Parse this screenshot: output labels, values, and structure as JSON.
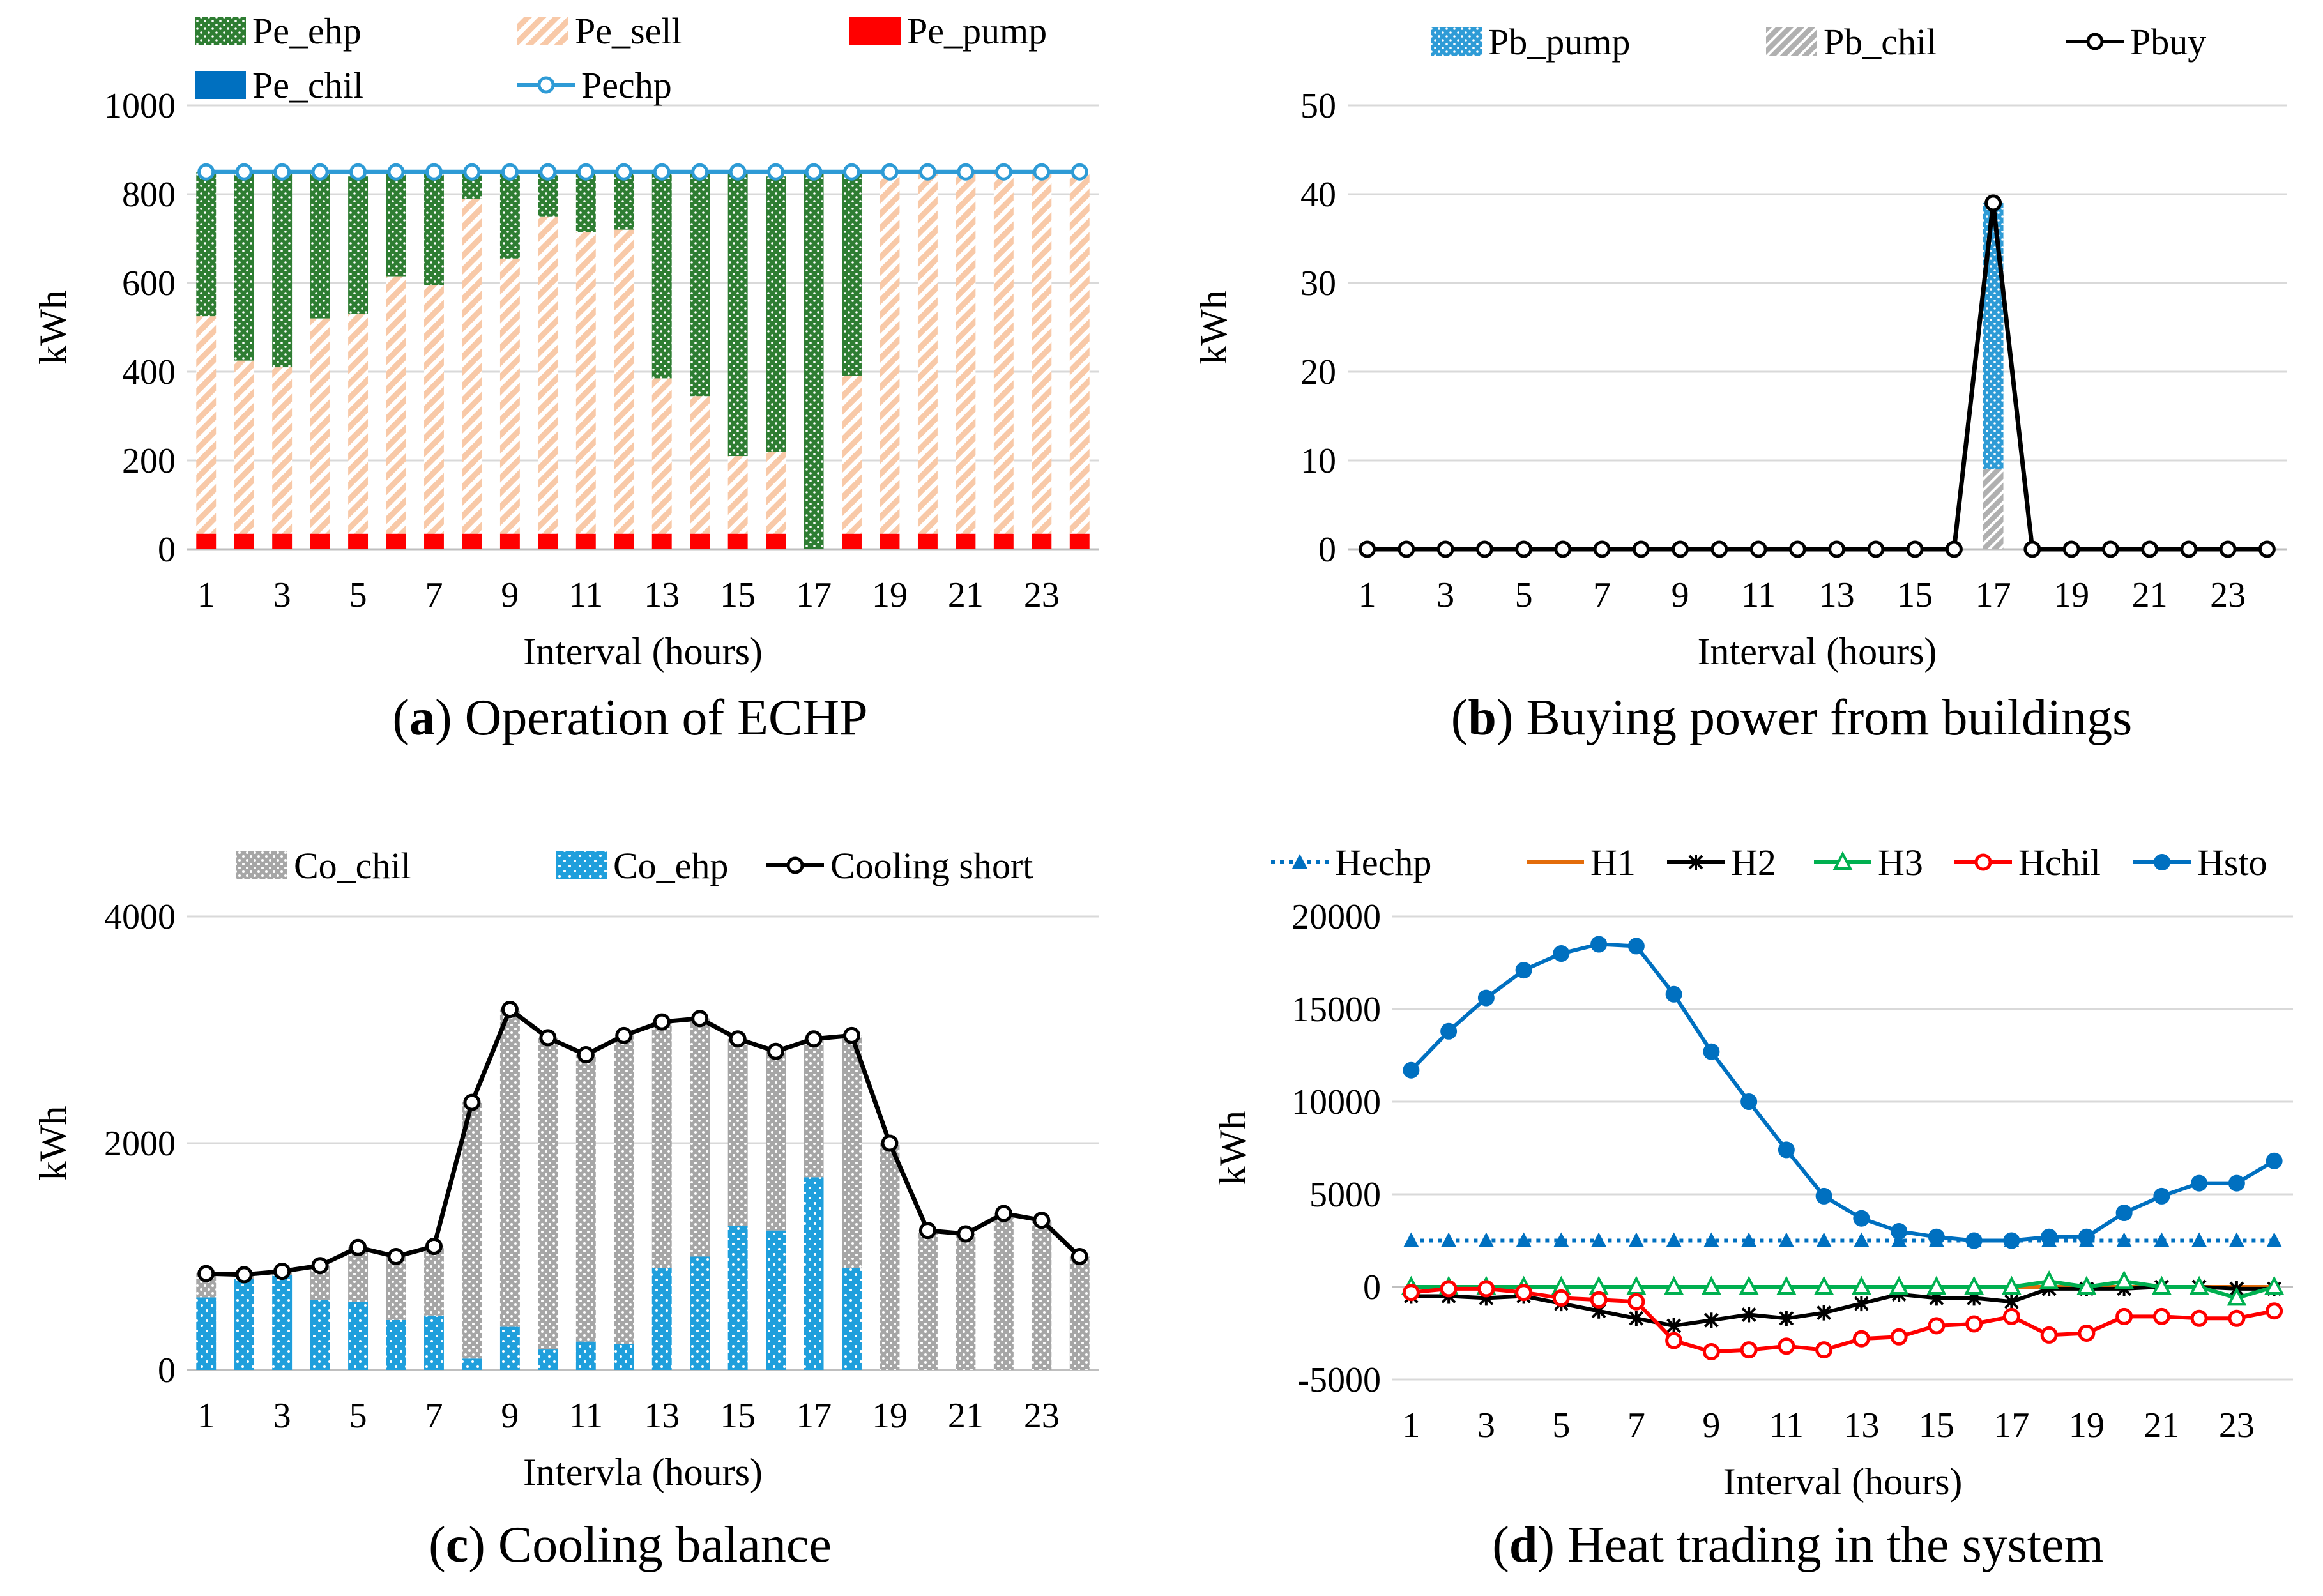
{
  "chart_data": [
    {
      "id": "a",
      "type": "bar",
      "stacked": true,
      "caption_label": "a",
      "caption_text": ") Operation of ECHP",
      "xlabel": "Interval (hours)",
      "ylabel": "kWh",
      "ylim": [
        0,
        1000
      ],
      "yticks": [
        "0",
        "200",
        "400",
        "600",
        "800",
        "1000"
      ],
      "categories": [
        1,
        2,
        3,
        4,
        5,
        6,
        7,
        8,
        9,
        10,
        11,
        12,
        13,
        14,
        15,
        16,
        17,
        18,
        19,
        20,
        21,
        22,
        23,
        24
      ],
      "xtick_labels": [
        "1",
        "3",
        "5",
        "7",
        "9",
        "11",
        "13",
        "15",
        "17",
        "19",
        "21",
        "23"
      ],
      "series": [
        {
          "name": "Pe_ehp",
          "color": "#2e7d32",
          "values": [
            325,
            420,
            435,
            325,
            310,
            230,
            250,
            55,
            190,
            95,
            130,
            125,
            465,
            500,
            635,
            620,
            850,
            455,
            0,
            0,
            0,
            0,
            0,
            0
          ]
        },
        {
          "name": "Pe_sell",
          "color": "#f4b183",
          "values": [
            490,
            390,
            375,
            485,
            495,
            580,
            560,
            755,
            620,
            715,
            680,
            685,
            350,
            310,
            175,
            185,
            0,
            355,
            810,
            810,
            810,
            810,
            810,
            810
          ]
        },
        {
          "name": "Pe_pump",
          "color": "#ff0000",
          "values": [
            35,
            35,
            35,
            35,
            35,
            35,
            35,
            35,
            35,
            35,
            35,
            35,
            35,
            35,
            35,
            35,
            0,
            35,
            35,
            35,
            35,
            35,
            35,
            35
          ]
        },
        {
          "name": "Pe_chil",
          "color": "#0070c0",
          "values": [
            0,
            0,
            0,
            0,
            0,
            0,
            0,
            0,
            0,
            0,
            0,
            0,
            0,
            0,
            0,
            0,
            0,
            0,
            0,
            0,
            0,
            0,
            0,
            0
          ]
        },
        {
          "name": "Pechp",
          "type": "line",
          "color": "#2e9bd6",
          "values": [
            850,
            850,
            850,
            850,
            850,
            850,
            850,
            850,
            850,
            850,
            850,
            850,
            850,
            850,
            850,
            850,
            850,
            850,
            850,
            850,
            850,
            850,
            850,
            850
          ]
        }
      ]
    },
    {
      "id": "b",
      "type": "bar",
      "stacked": true,
      "caption_label": "b",
      "caption_text": ") Buying power from buildings",
      "xlabel": "Interval (hours)",
      "ylabel": "kWh",
      "ylim": [
        0,
        50
      ],
      "yticks": [
        "0",
        "10",
        "20",
        "30",
        "40",
        "50"
      ],
      "categories": [
        1,
        2,
        3,
        4,
        5,
        6,
        7,
        8,
        9,
        10,
        11,
        12,
        13,
        14,
        15,
        16,
        17,
        18,
        19,
        20,
        21,
        22,
        23,
        24
      ],
      "xtick_labels": [
        "1",
        "3",
        "5",
        "7",
        "9",
        "11",
        "13",
        "15",
        "17",
        "19",
        "21",
        "23"
      ],
      "series": [
        {
          "name": "Pb_pump",
          "color": "#2e9bd6",
          "values": [
            0,
            0,
            0,
            0,
            0,
            0,
            0,
            0,
            0,
            0,
            0,
            0,
            0,
            0,
            0,
            0,
            30,
            0,
            0,
            0,
            0,
            0,
            0,
            0
          ]
        },
        {
          "name": "Pb_chil",
          "color": "#a6a6a6",
          "values": [
            0,
            0,
            0,
            0,
            0,
            0,
            0,
            0,
            0,
            0,
            0,
            0,
            0,
            0,
            0,
            0,
            9,
            0,
            0,
            0,
            0,
            0,
            0,
            0
          ]
        },
        {
          "name": "Pbuy",
          "type": "line",
          "color": "#000000",
          "values": [
            0,
            0,
            0,
            0,
            0,
            0,
            0,
            0,
            0,
            0,
            0,
            0,
            0,
            0,
            0,
            0,
            39,
            0,
            0,
            0,
            0,
            0,
            0,
            0
          ]
        }
      ]
    },
    {
      "id": "c",
      "type": "bar",
      "stacked": true,
      "caption_label": "c",
      "caption_text": ") Cooling balance",
      "xlabel": "Intervla (hours)",
      "ylabel": "kWh",
      "ylim": [
        0,
        4000
      ],
      "yticks": [
        "0",
        "2000",
        "4000"
      ],
      "categories": [
        1,
        2,
        3,
        4,
        5,
        6,
        7,
        8,
        9,
        10,
        11,
        12,
        13,
        14,
        15,
        16,
        17,
        18,
        19,
        20,
        21,
        22,
        23,
        24
      ],
      "xtick_labels": [
        "1",
        "3",
        "5",
        "7",
        "9",
        "11",
        "13",
        "15",
        "17",
        "19",
        "21",
        "23"
      ],
      "series": [
        {
          "name": "Co_chil",
          "color": "#a6a6a6",
          "values": [
            210,
            40,
            30,
            300,
            480,
            560,
            610,
            2260,
            2800,
            2750,
            2530,
            2720,
            2170,
            2100,
            1650,
            1580,
            1220,
            2050,
            2000,
            1230,
            1200,
            1380,
            1320,
            1000
          ]
        },
        {
          "name": "Co_ehp",
          "color": "#1f9fdc",
          "values": [
            640,
            800,
            840,
            620,
            600,
            440,
            480,
            100,
            380,
            180,
            250,
            230,
            900,
            1000,
            1270,
            1230,
            1700,
            900,
            0,
            0,
            0,
            0,
            0,
            0
          ]
        },
        {
          "name": "Cooling short",
          "type": "line",
          "color": "#000000",
          "values": [
            850,
            840,
            870,
            920,
            1080,
            1000,
            1090,
            2360,
            3180,
            2930,
            2780,
            2950,
            3070,
            3100,
            2920,
            2810,
            2920,
            2950,
            2000,
            1230,
            1200,
            1380,
            1320,
            1000
          ]
        }
      ]
    },
    {
      "id": "d",
      "type": "line",
      "caption_label": "d",
      "caption_text": ") Heat trading in the system",
      "xlabel": "Interval (hours)",
      "ylabel": "kWh",
      "ylim": [
        -5000,
        20000
      ],
      "yticks": [
        "-5000",
        "0",
        "5000",
        "10000",
        "15000",
        "20000"
      ],
      "x": [
        1,
        2,
        3,
        4,
        5,
        6,
        7,
        8,
        9,
        10,
        11,
        12,
        13,
        14,
        15,
        16,
        17,
        18,
        19,
        20,
        21,
        22,
        23,
        24
      ],
      "xtick_labels": [
        "1",
        "3",
        "5",
        "7",
        "9",
        "11",
        "13",
        "15",
        "17",
        "19",
        "21",
        "23"
      ],
      "series": [
        {
          "name": "Hechp",
          "color": "#0070c0",
          "marker": "triangle-filled",
          "dash": "dotted",
          "values": [
            2500,
            2500,
            2500,
            2500,
            2500,
            2500,
            2500,
            2500,
            2500,
            2500,
            2500,
            2500,
            2500,
            2500,
            2500,
            2500,
            2500,
            2500,
            2500,
            2500,
            2500,
            2500,
            2500,
            2500
          ]
        },
        {
          "name": "H1",
          "color": "#e36c0a",
          "marker": "none",
          "values": [
            0,
            0,
            0,
            0,
            0,
            0,
            0,
            0,
            0,
            0,
            0,
            0,
            0,
            0,
            0,
            0,
            0,
            0,
            0,
            0,
            0,
            0,
            0,
            0
          ]
        },
        {
          "name": "H2",
          "color": "#000000",
          "marker": "x",
          "values": [
            -500,
            -500,
            -600,
            -500,
            -900,
            -1300,
            -1700,
            -2100,
            -1800,
            -1500,
            -1700,
            -1400,
            -900,
            -400,
            -600,
            -600,
            -800,
            -100,
            -100,
            -100,
            0,
            0,
            -100,
            -100
          ]
        },
        {
          "name": "H3",
          "color": "#00b050",
          "marker": "triangle-open",
          "values": [
            0,
            0,
            0,
            0,
            0,
            0,
            0,
            0,
            0,
            0,
            0,
            0,
            0,
            0,
            0,
            0,
            0,
            300,
            0,
            300,
            0,
            0,
            -600,
            0
          ]
        },
        {
          "name": "Hchil",
          "color": "#ff0000",
          "marker": "circle-open",
          "values": [
            -300,
            -100,
            -100,
            -300,
            -600,
            -700,
            -800,
            -2900,
            -3500,
            -3400,
            -3200,
            -3400,
            -2800,
            -2700,
            -2100,
            -2000,
            -1600,
            -2600,
            -2500,
            -1600,
            -1600,
            -1700,
            -1700,
            -1300
          ]
        },
        {
          "name": "Hsto",
          "color": "#0070c0",
          "marker": "circle-filled",
          "values": [
            11700,
            13800,
            15600,
            17100,
            18000,
            18500,
            18400,
            15800,
            12700,
            10000,
            7400,
            4900,
            3700,
            3000,
            2700,
            2500,
            2500,
            2700,
            2700,
            4000,
            4900,
            5600,
            5600,
            6800
          ]
        }
      ]
    }
  ]
}
